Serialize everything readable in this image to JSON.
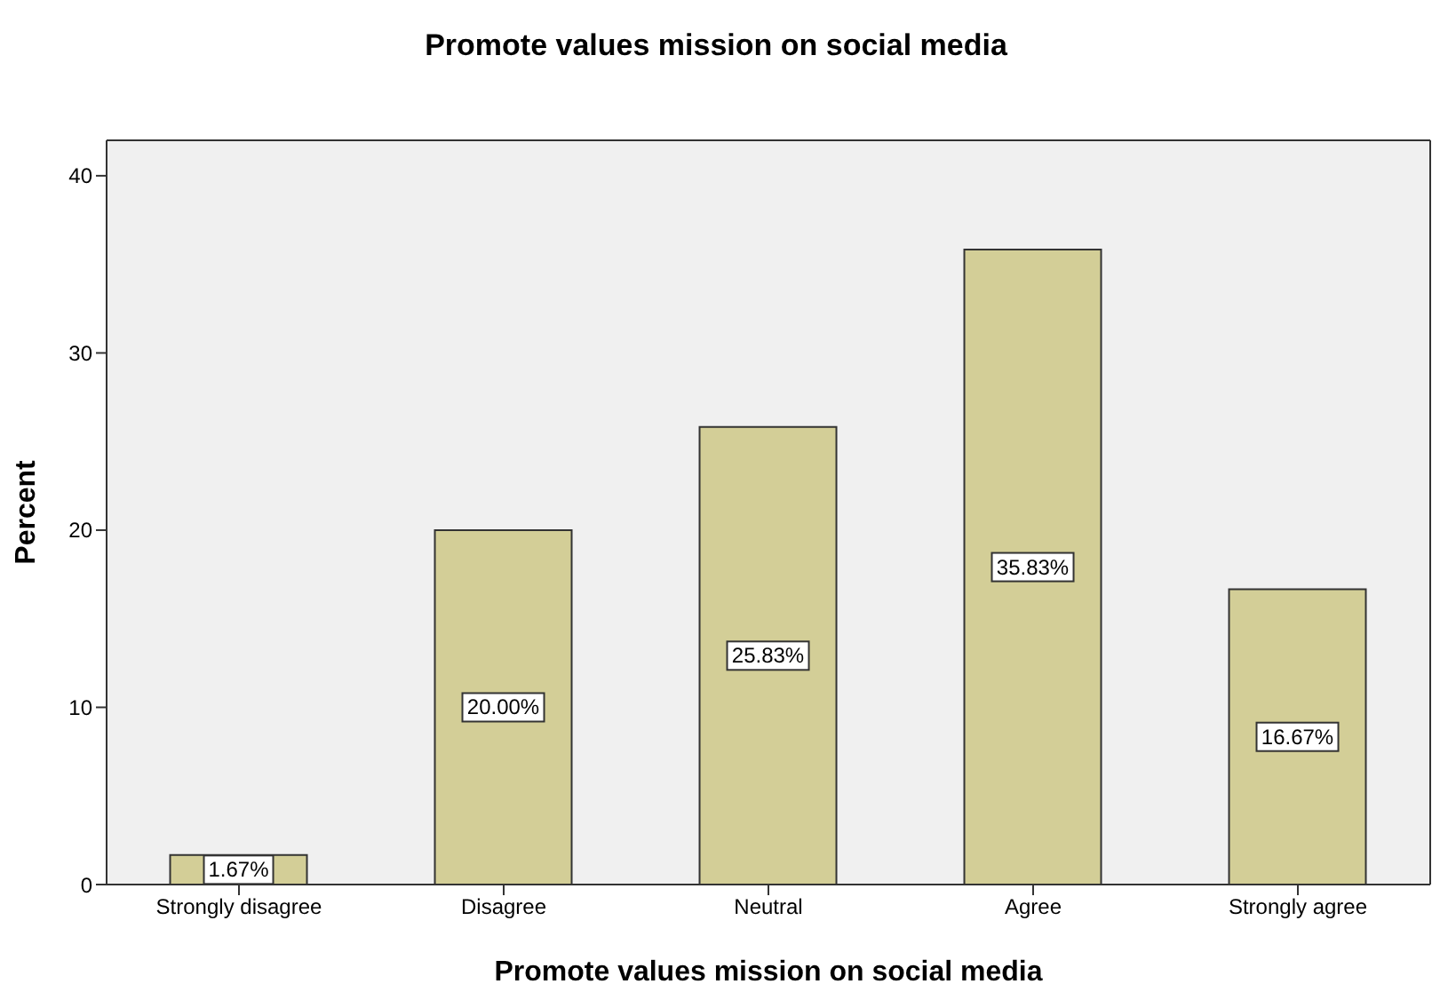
{
  "chart_data": {
    "type": "bar",
    "title": "Promote values mission on social media",
    "xlabel": "Promote values mission on social media",
    "ylabel": "Percent",
    "categories": [
      "Strongly disagree",
      "Disagree",
      "Neutral",
      "Agree",
      "Strongly agree"
    ],
    "values": [
      1.67,
      20.0,
      25.83,
      35.83,
      16.67
    ],
    "value_labels": [
      "1.67%",
      "20.00%",
      "25.83%",
      "35.83%",
      "16.67%"
    ],
    "color": "#d3ce97",
    "ylim": [
      0,
      42
    ],
    "yticks": [
      0,
      10,
      20,
      30,
      40
    ],
    "grid": false
  }
}
